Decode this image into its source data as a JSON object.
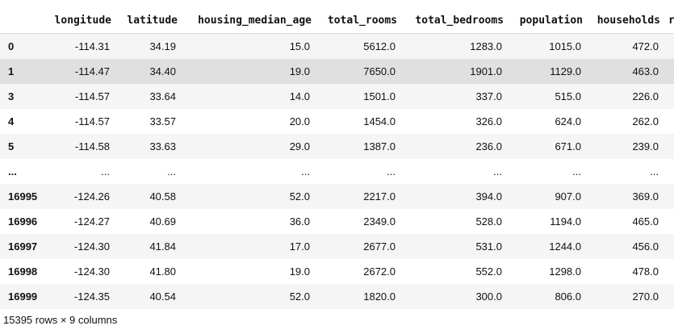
{
  "table": {
    "columns": [
      "",
      "longitude",
      "latitude",
      "housing_median_age",
      "total_rooms",
      "total_bedrooms",
      "population",
      "households"
    ],
    "truncated_column_glyph": "r",
    "rows": [
      [
        "0",
        "-114.31",
        "34.19",
        "15.0",
        "5612.0",
        "1283.0",
        "1015.0",
        "472.0"
      ],
      [
        "1",
        "-114.47",
        "34.40",
        "19.0",
        "7650.0",
        "1901.0",
        "1129.0",
        "463.0"
      ],
      [
        "3",
        "-114.57",
        "33.64",
        "14.0",
        "1501.0",
        "337.0",
        "515.0",
        "226.0"
      ],
      [
        "4",
        "-114.57",
        "33.57",
        "20.0",
        "1454.0",
        "326.0",
        "624.0",
        "262.0"
      ],
      [
        "5",
        "-114.58",
        "33.63",
        "29.0",
        "1387.0",
        "236.0",
        "671.0",
        "239.0"
      ],
      [
        "...",
        "...",
        "...",
        "...",
        "...",
        "...",
        "...",
        "..."
      ],
      [
        "16995",
        "-124.26",
        "40.58",
        "52.0",
        "2217.0",
        "394.0",
        "907.0",
        "369.0"
      ],
      [
        "16996",
        "-124.27",
        "40.69",
        "36.0",
        "2349.0",
        "528.0",
        "1194.0",
        "465.0"
      ],
      [
        "16997",
        "-124.30",
        "41.84",
        "17.0",
        "2677.0",
        "531.0",
        "1244.0",
        "456.0"
      ],
      [
        "16998",
        "-124.30",
        "41.80",
        "19.0",
        "2672.0",
        "552.0",
        "1298.0",
        "478.0"
      ],
      [
        "16999",
        "-124.35",
        "40.54",
        "52.0",
        "1820.0",
        "300.0",
        "806.0",
        "270.0"
      ]
    ],
    "hovered_row": 1
  },
  "footer": {
    "shape_text": "15395 rows × 9 columns"
  },
  "colors": {
    "row_stripe": "#f5f5f5",
    "row_hover": "#e0e0e0",
    "text": "#111111",
    "header_border": "#d8d8d8"
  }
}
